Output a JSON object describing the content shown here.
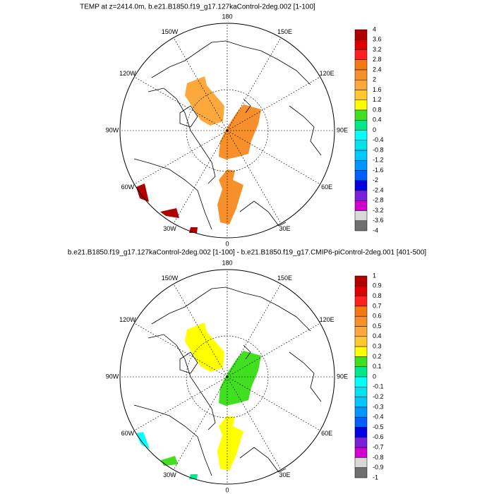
{
  "panels": [
    {
      "title": "TEMP at z=2414.0m, b.e21.B1850.f19_g17.127kaControl-2deg.002 [1-100]",
      "longitude_labels": [
        "0",
        "30E",
        "60E",
        "90E",
        "120E",
        "150E",
        "180",
        "150W",
        "120W",
        "90W",
        "60W",
        "30W"
      ],
      "colorbar": {
        "labels": [
          4,
          3.6,
          3.2,
          2.8,
          2.4,
          2,
          1.6,
          1.2,
          0.8,
          0.4,
          0,
          -0.4,
          -0.8,
          -1.2,
          -1.6,
          -2,
          -2.4,
          -2.8,
          -3.2,
          -3.6,
          -4
        ],
        "colors": [
          "#b00000",
          "#dd0000",
          "#ff2020",
          "#f27a10",
          "#f7902a",
          "#fca83c",
          "#ffc830",
          "#ffff00",
          "#40e020",
          "#00e88a",
          "#00ffff",
          "#00e2f0",
          "#00c8ff",
          "#0096ff",
          "#0060ff",
          "#0000e0",
          "#7a20d8",
          "#d000d0",
          "#d8d8d8",
          "#6e6e6e"
        ]
      }
    },
    {
      "title": "b.e21.B1850.f19_g17.127kaControl-2deg.002 [1-100] - b.e21.B1850.f19_g17.CMIP6-piControl-2deg.001 [401-500]",
      "longitude_labels": [
        "0",
        "30E",
        "60E",
        "90E",
        "120E",
        "150E",
        "180",
        "150W",
        "120W",
        "90W",
        "60W",
        "30W"
      ],
      "colorbar": {
        "labels": [
          1,
          0.9,
          0.8,
          0.7,
          0.6,
          0.5,
          0.4,
          0.3,
          0.2,
          0.1,
          0,
          -0.1,
          -0.2,
          -0.3,
          -0.4,
          -0.5,
          -0.6,
          -0.7,
          -0.8,
          -0.9,
          -1
        ],
        "colors": [
          "#b00000",
          "#dd0000",
          "#ff2020",
          "#f27a10",
          "#f7902a",
          "#fca83c",
          "#ffc830",
          "#ffff00",
          "#40e020",
          "#00e88a",
          "#00ffff",
          "#00e2f0",
          "#00c8ff",
          "#0096ff",
          "#0060ff",
          "#0000e0",
          "#7a20d8",
          "#d000d0",
          "#d8d8d8",
          "#6e6e6e"
        ]
      }
    }
  ]
}
